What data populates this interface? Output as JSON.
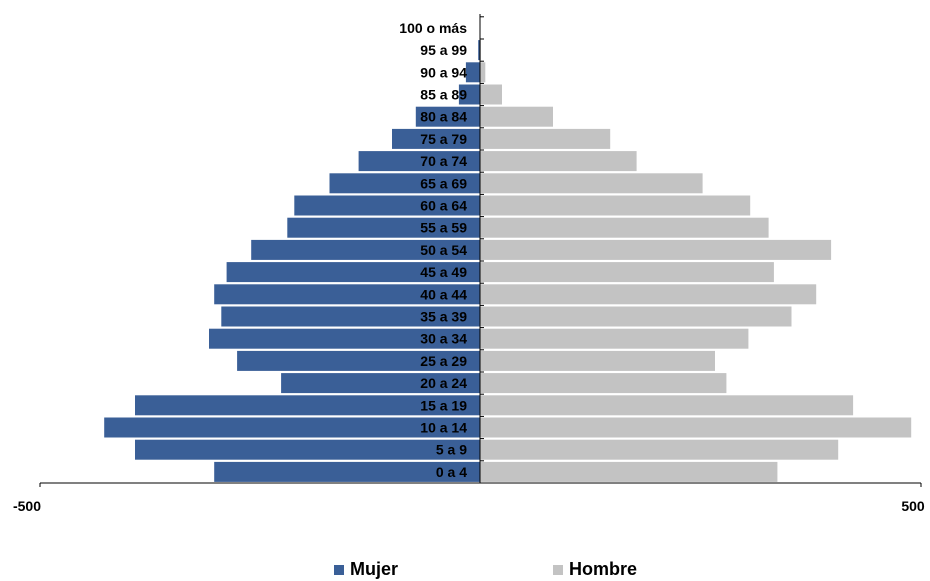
{
  "chart_data": {
    "type": "bar",
    "orientation": "horizontal-population-pyramid",
    "categories": [
      "0 a 4",
      "5 a 9",
      "10 a 14",
      "15 a 19",
      "20 a 24",
      "25 a 29",
      "30 a 34",
      "35 a 39",
      "40 a 44",
      "45 a 49",
      "50 a 54",
      "55 a 59",
      "60 a 64",
      "65 a 69",
      "70 a 74",
      "75 a 79",
      "80 a 84",
      "85 a 89",
      "90 a 94",
      "95 a 99",
      "100 o más"
    ],
    "series": [
      {
        "name": "Mujer",
        "color": "#3a5f97",
        "values": [
          -302,
          -392,
          -427,
          -392,
          -226,
          -276,
          -308,
          -294,
          -302,
          -288,
          -260,
          -219,
          -211,
          -171,
          -138,
          -100,
          -73,
          -24,
          -16,
          -2,
          0
        ]
      },
      {
        "name": "Hombre",
        "color": "#c3c3c3",
        "values": [
          338,
          407,
          490,
          424,
          280,
          267,
          305,
          354,
          382,
          334,
          399,
          328,
          307,
          253,
          178,
          148,
          83,
          25,
          6,
          1,
          0
        ]
      }
    ],
    "xlim": [
      -500,
      500
    ],
    "x_ticks": [
      -500,
      500
    ],
    "x_tick_labels": [
      "-500",
      "500"
    ],
    "grid": false,
    "legend_position": "bottom",
    "title": "",
    "xlabel": "",
    "ylabel": ""
  },
  "legend": {
    "items": [
      {
        "label": "Mujer",
        "color": "#3a5f97"
      },
      {
        "label": "Hombre",
        "color": "#c3c3c3"
      }
    ]
  }
}
